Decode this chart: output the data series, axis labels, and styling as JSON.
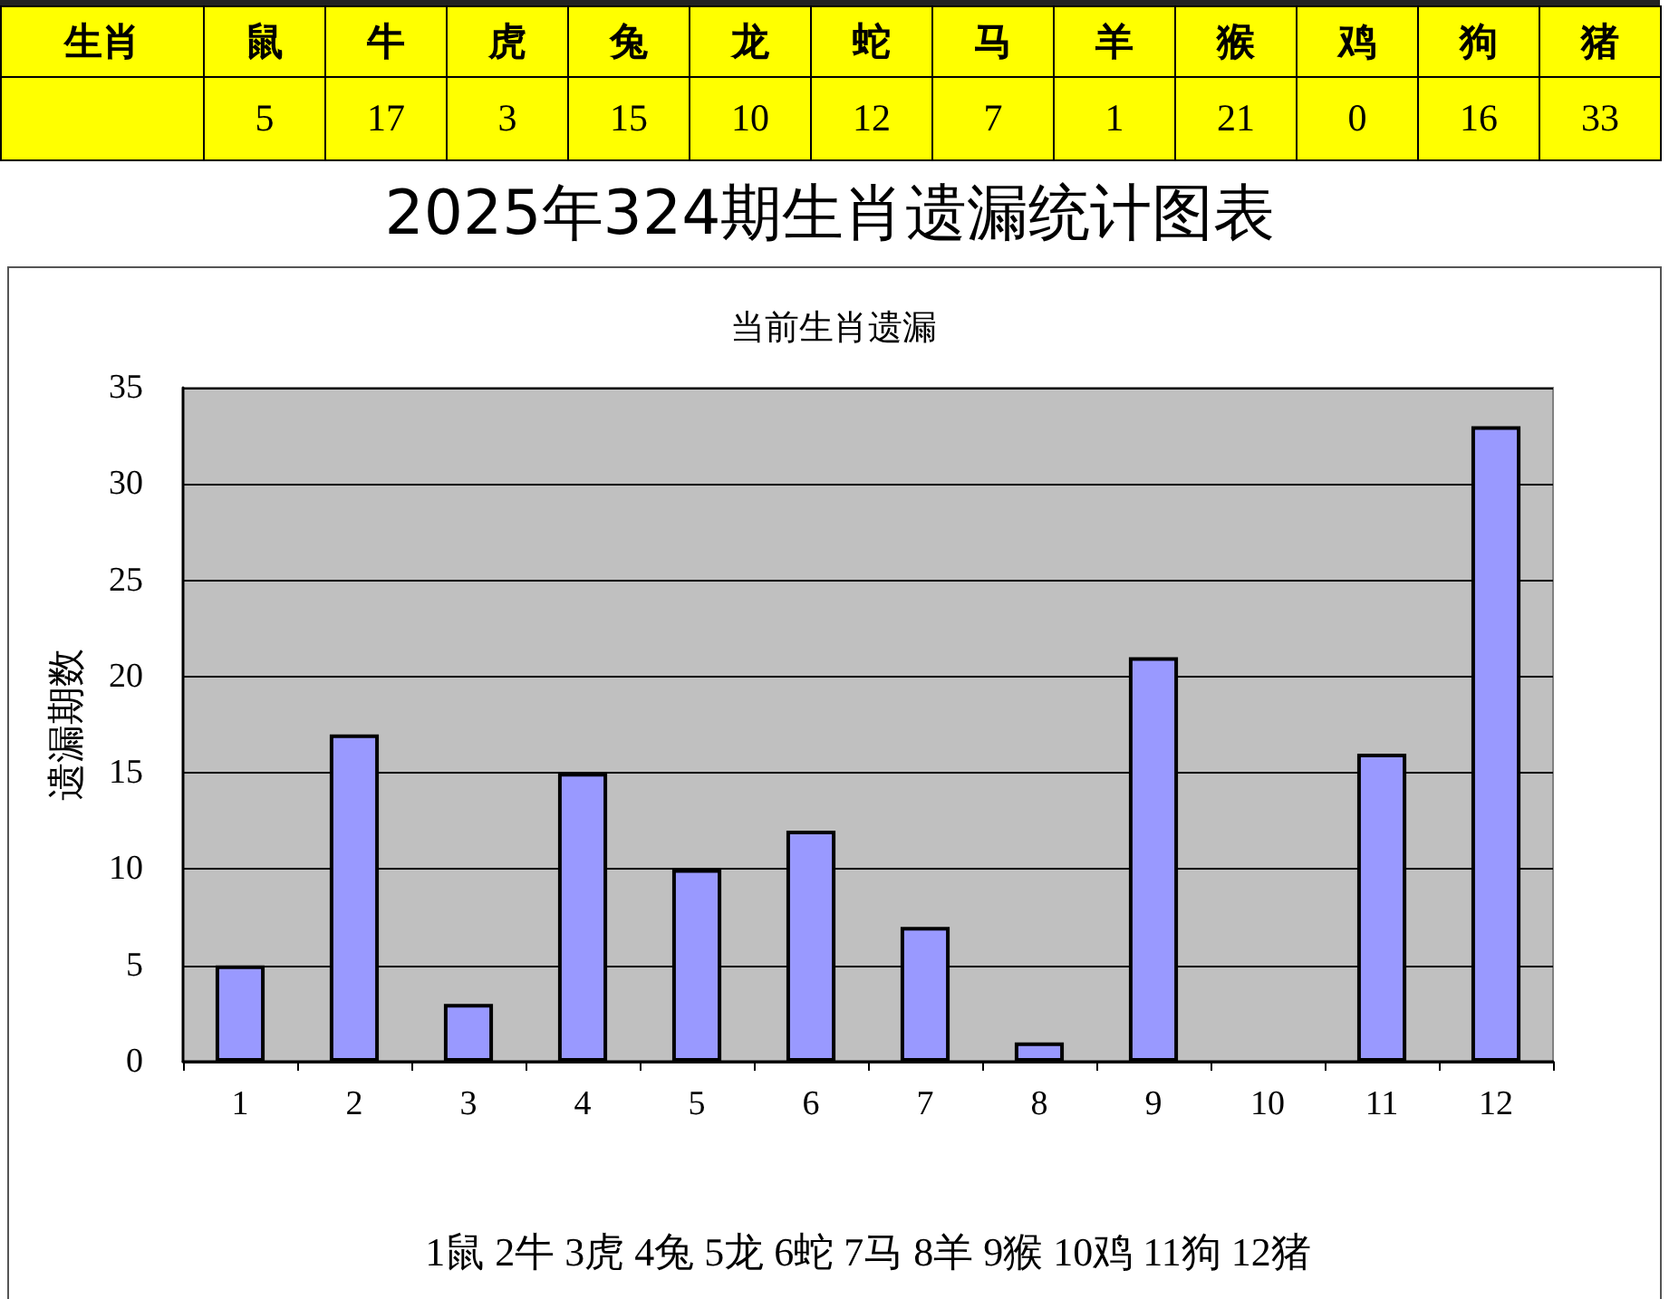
{
  "chart_data": [
    {
      "type": "other",
      "annotations": [
        "生肖"
      ],
      "categories": [
        "鼠",
        "牛",
        "虎",
        "兔",
        "龙",
        "蛇",
        "马",
        "羊",
        "猴",
        "鸡",
        "狗",
        "猪"
      ],
      "values": [
        5,
        17,
        3,
        15,
        10,
        12,
        7,
        1,
        21,
        0,
        16,
        33
      ],
      "data_labels": true
    },
    {
      "type": "bar",
      "title": "2025年324期生肖遗漏统计图表",
      "subtitle": "当前生肖遗漏",
      "ylabel": "遗漏期数",
      "xlabel": "1鼠 2牛 3虎 4兔 5龙 6蛇 7马 8羊 9猴 10鸡 11狗 12猪",
      "categories": [
        "1",
        "2",
        "3",
        "4",
        "5",
        "6",
        "7",
        "8",
        "9",
        "10",
        "11",
        "12"
      ],
      "values": [
        5,
        17,
        3,
        15,
        10,
        12,
        7,
        1,
        21,
        0,
        16,
        33
      ],
      "color": "#9999ff",
      "ylim": [
        0,
        35
      ],
      "yticks": [
        0,
        5,
        10,
        15,
        20,
        25,
        30,
        35
      ],
      "grid": "y"
    }
  ]
}
